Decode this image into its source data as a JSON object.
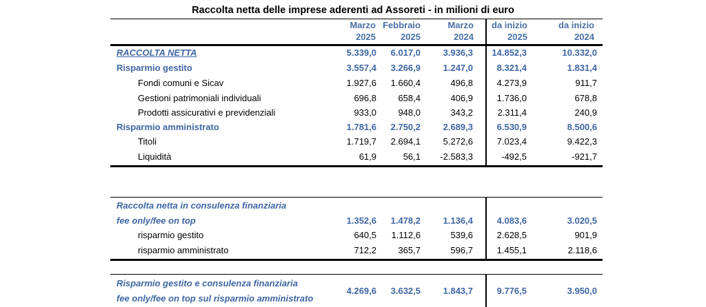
{
  "title": "Raccolta netta delle imprese aderenti ad Assoreti - in milioni di euro",
  "headers": [
    {
      "l1": "Marzo",
      "l2": "2025"
    },
    {
      "l1": "Febbraio",
      "l2": "2025"
    },
    {
      "l1": "Marzo",
      "l2": "2024"
    },
    {
      "l1": "da inizio",
      "l2": "2025"
    },
    {
      "l1": "da inizio",
      "l2": "2024"
    }
  ],
  "table1": [
    {
      "label": "RACCOLTA NETTA",
      "values": [
        "5.339,0",
        "6.017,0",
        "3.936,3",
        "14.852,3",
        "10.332,0"
      ]
    },
    {
      "label": "Risparmio gestito",
      "values": [
        "3.557,4",
        "3.266,9",
        "1.247,0",
        "8.321,4",
        "1.831,4"
      ]
    },
    {
      "label": "Fondi comuni e Sicav",
      "values": [
        "1.927,6",
        "1.660,4",
        "496,8",
        "4.273,9",
        "911,7"
      ]
    },
    {
      "label": "Gestioni patrimoniali individuali",
      "values": [
        "696,8",
        "658,4",
        "406,9",
        "1.736,0",
        "678,8"
      ]
    },
    {
      "label": "Prodotti assicurativi e previdenziali",
      "values": [
        "933,0",
        "948,0",
        "343,2",
        "2.311,4",
        "240,9"
      ]
    },
    {
      "label": "Risparmio amministrato",
      "values": [
        "1.781,6",
        "2.750,2",
        "2.689,3",
        "6.530,9",
        "8.500,6"
      ]
    },
    {
      "label": "Titoli",
      "values": [
        "1.719,7",
        "2.694,1",
        "5.272,6",
        "7.023,4",
        "9.422,3"
      ]
    },
    {
      "label": "Liquidità",
      "values": [
        "61,9",
        "56,1",
        "-2.583,3",
        "-492,5",
        "-921,7"
      ]
    }
  ],
  "table2": {
    "label_line1": "Raccolta netta in consulenza finanziaria",
    "label_line2": "fee only/fee on top",
    "values": [
      "1.352,6",
      "1.478,2",
      "1.136,4",
      "4.083,6",
      "3.020,5"
    ],
    "rows": [
      {
        "label": "risparmio gestito",
        "values": [
          "640,5",
          "1.112,6",
          "539,6",
          "2.628,5",
          "901,9"
        ]
      },
      {
        "label": "risparmio amministrato",
        "values": [
          "712,2",
          "365,7",
          "596,7",
          "1.455,1",
          "2.118,6"
        ]
      }
    ]
  },
  "table3": {
    "label_line1": "Risparmio gestito e consulenza finanziaria",
    "label_line2": "fee only/fee on top sul risparmio amministrato",
    "values": [
      "4.269,6",
      "3.632,5",
      "1.843,7",
      "9.776,5",
      "3.950,0"
    ]
  },
  "colors": {
    "header_blue": "#4a6fa5",
    "label_blue": "#3f66a3",
    "text": "#000000"
  }
}
